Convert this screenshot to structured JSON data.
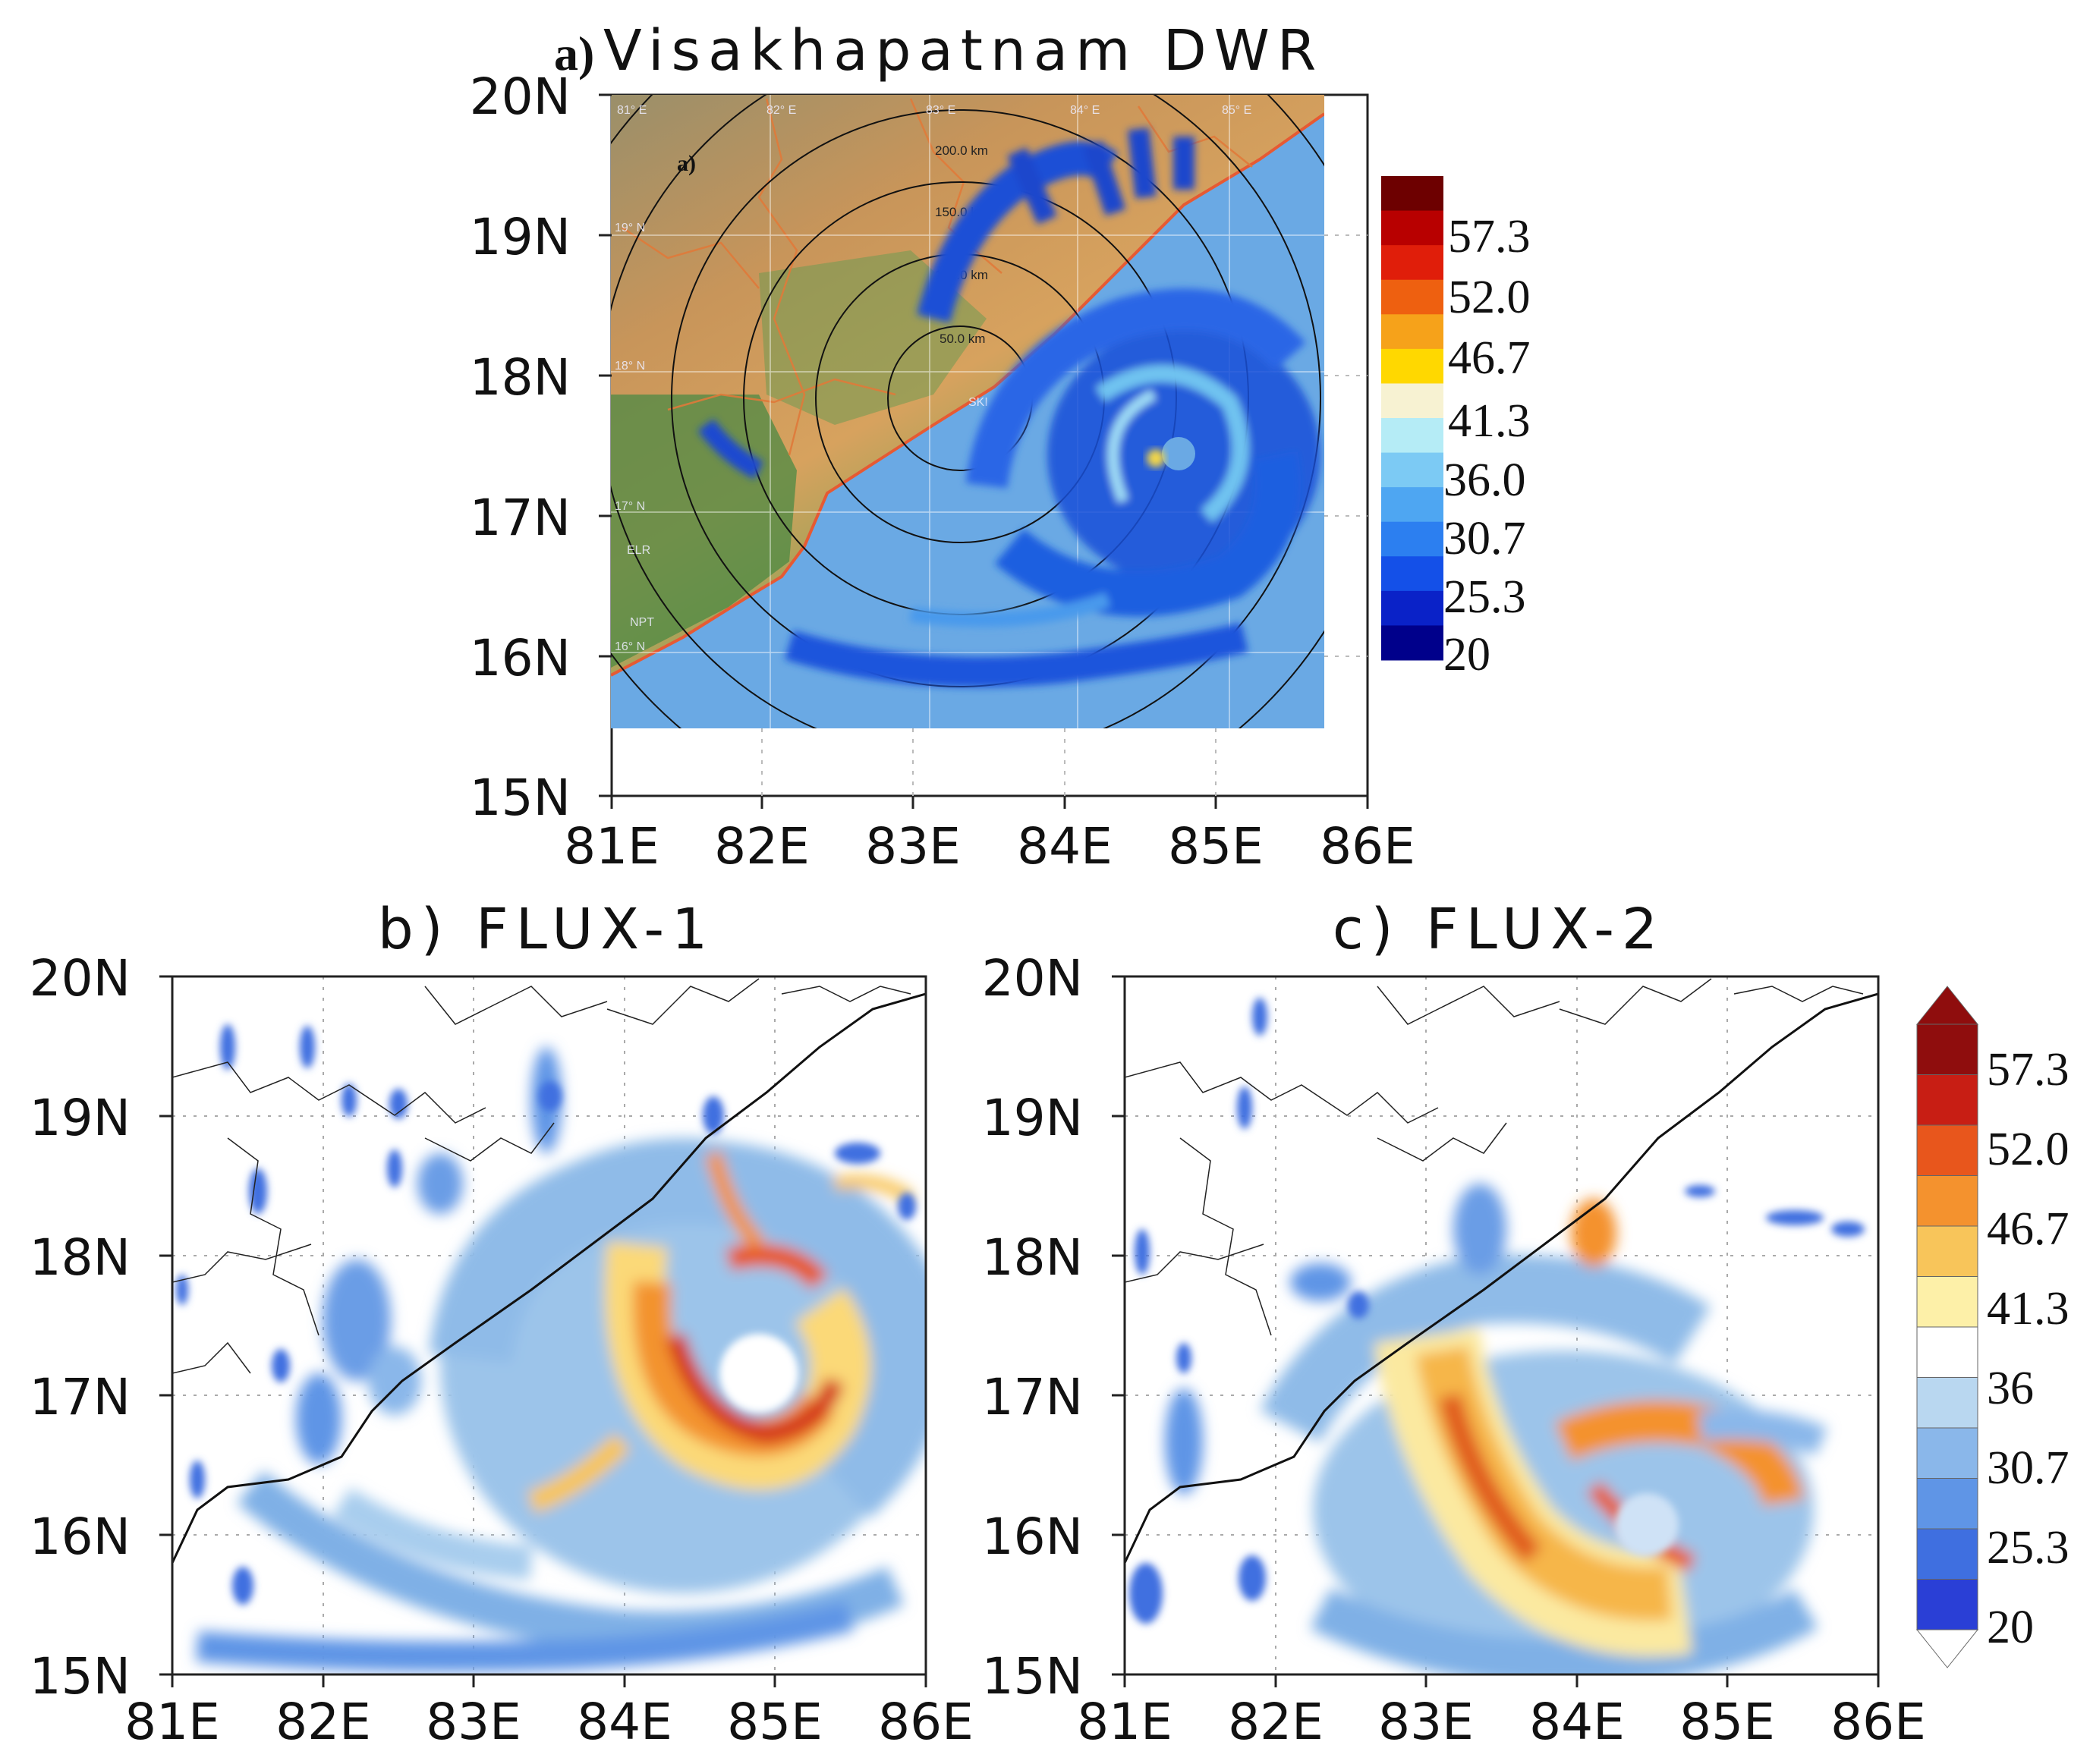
{
  "panels": [
    {
      "id": "a",
      "title_prefix": "a)",
      "title": "Visakhapatnam DWR",
      "xticks": [
        "81E",
        "82E",
        "83E",
        "84E",
        "85E",
        "86E"
      ],
      "yticks": [
        "20N",
        "19N",
        "18N",
        "17N",
        "16N",
        "15N"
      ],
      "inset_label": "a)",
      "range_rings": [
        "200.0 km",
        "150.0 km",
        "100.0 km",
        "50.0 km"
      ],
      "graticule_lon": [
        "81° E",
        "82° E",
        "83° E",
        "84° E",
        "85° E"
      ],
      "graticule_lat": [
        "19° N",
        "18° N",
        "17° N",
        "16° N"
      ],
      "station_labels": [
        "ELR",
        "NPT",
        "SKI"
      ],
      "colorbar_labels": [
        "57.3",
        "52.0",
        "46.7",
        "41.3",
        "36.0",
        "30.7",
        "25.3",
        "20"
      ]
    },
    {
      "id": "b",
      "title": "b)  FLUX-1",
      "xticks": [
        "81E",
        "82E",
        "83E",
        "84E",
        "85E",
        "86E"
      ],
      "yticks": [
        "20N",
        "19N",
        "18N",
        "17N",
        "16N",
        "15N"
      ]
    },
    {
      "id": "c",
      "title": "c)  FLUX-2",
      "xticks": [
        "81E",
        "82E",
        "83E",
        "84E",
        "85E",
        "86E"
      ],
      "yticks": [
        "20N",
        "19N",
        "18N",
        "17N",
        "16N",
        "15N"
      ],
      "colorbar_labels": [
        "57.3",
        "52.0",
        "46.7",
        "41.3",
        "36",
        "30.7",
        "25.3",
        "20"
      ]
    }
  ],
  "map_extent": {
    "lon": [
      81,
      86
    ],
    "lat": [
      15,
      20
    ]
  },
  "colors": {
    "reflectivity": [
      "#2a3fd6",
      "#3f6fe0",
      "#5f95e6",
      "#8ab7ea",
      "#b9d7f0",
      "#ffffff",
      "#fdf0a8",
      "#f8c55a",
      "#f4922e",
      "#e8561c",
      "#c81e14",
      "#8f0d0d"
    ],
    "dwr_scale": [
      "#00008b",
      "#0a22c8",
      "#1450e8",
      "#2c7ff0",
      "#4ea6f2",
      "#7ccaf4",
      "#b5ecf6",
      "#f7f2d2",
      "#ffd800",
      "#f6a21a",
      "#ee6010",
      "#e01e0a",
      "#b80000",
      "#6d0000"
    ]
  }
}
